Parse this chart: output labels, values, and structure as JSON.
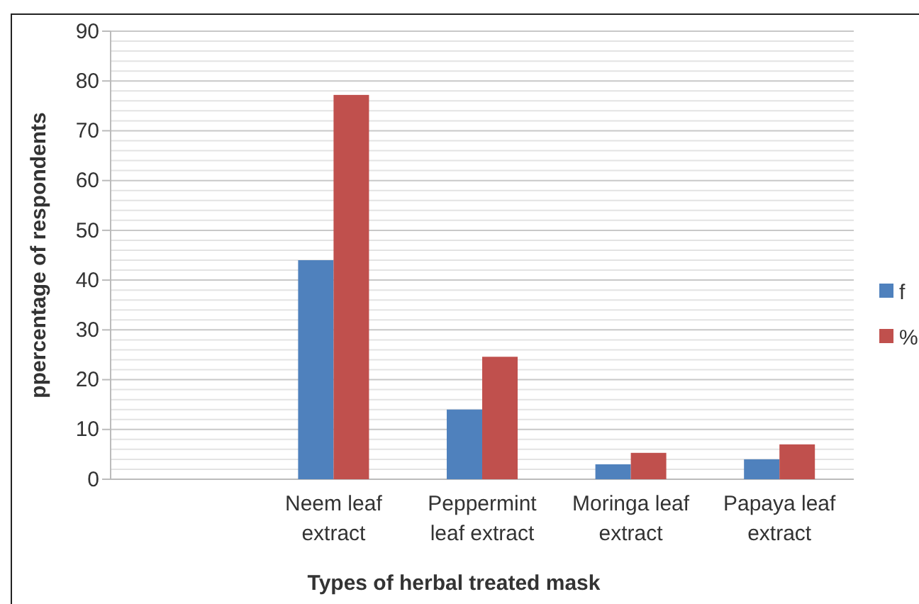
{
  "chart_data": {
    "type": "bar",
    "xlabel": "Types of herbal treated mask",
    "ylabel": "ppercentage of respondents",
    "categories": [
      null,
      "Neem leaf extract",
      "Peppermint leaf extract",
      "Moringa leaf extract",
      "Papaya leaf extract"
    ],
    "series": [
      {
        "name": "f",
        "color": "#4f81bd",
        "values": [
          null,
          44,
          14,
          3,
          4
        ]
      },
      {
        "name": "%",
        "color": "#c0504d",
        "values": [
          null,
          77.2,
          24.6,
          5.3,
          7
        ]
      }
    ],
    "ylim": [
      0,
      90
    ],
    "yticks": [
      0,
      {
        "value": 2,
        "label": null
      },
      {
        "value": 4,
        "label": null
      },
      {
        "value": 6,
        "label": null
      },
      {
        "value": 8,
        "label": null
      },
      10,
      {
        "value": 12,
        "label": null
      },
      {
        "value": 14,
        "label": null
      },
      {
        "value": 16,
        "label": null
      },
      {
        "value": 18,
        "label": null
      },
      20,
      {
        "value": 22,
        "label": null
      },
      {
        "value": 24,
        "label": null
      },
      {
        "value": 26,
        "label": null
      },
      {
        "value": 28,
        "label": null
      },
      30,
      {
        "value": 32,
        "label": null
      },
      {
        "value": 34,
        "label": null
      },
      {
        "value": 36,
        "label": null
      },
      {
        "value": 38,
        "label": null
      },
      40,
      {
        "value": 42,
        "label": null
      },
      {
        "value": 44,
        "label": null
      },
      {
        "value": 46,
        "label": null
      },
      {
        "value": 48,
        "label": null
      },
      50,
      {
        "value": 52,
        "label": null
      },
      {
        "value": 54,
        "label": null
      },
      {
        "value": 56,
        "label": null
      },
      {
        "value": 58,
        "label": null
      },
      60,
      {
        "value": 62,
        "label": null
      },
      {
        "value": 64,
        "label": null
      },
      {
        "value": 66,
        "label": null
      },
      {
        "value": 68,
        "label": null
      },
      70,
      {
        "value": 72,
        "label": null
      },
      {
        "value": 74,
        "label": null
      },
      {
        "value": 76,
        "label": null
      },
      {
        "value": 78,
        "label": null
      },
      80,
      {
        "value": 82,
        "label": null
      },
      {
        "value": 84,
        "label": null
      },
      {
        "value": 86,
        "label": null
      },
      {
        "value": 88,
        "label": null
      },
      90
    ],
    "grid": "y",
    "legend": "right"
  }
}
